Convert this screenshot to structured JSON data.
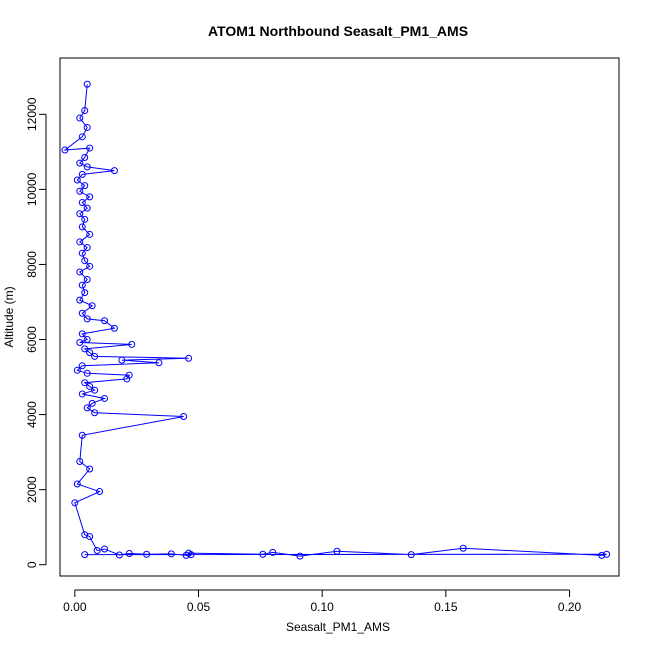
{
  "chart_data": {
    "type": "line",
    "title": "ATOM1 Northbound Seasalt_PM1_AMS",
    "xlabel": "Seasalt_PM1_AMS",
    "ylabel": "Altitude (m)",
    "xlim": [
      -0.006,
      0.22
    ],
    "ylim": [
      -300,
      13500
    ],
    "xticks": [
      0.0,
      0.05,
      0.1,
      0.15,
      0.2
    ],
    "xtick_labels": [
      "0.00",
      "0.05",
      "0.10",
      "0.15",
      "0.20"
    ],
    "yticks": [
      0,
      2000,
      4000,
      6000,
      8000,
      10000,
      12000
    ],
    "ytick_labels": [
      "0",
      "2000",
      "4000",
      "6000",
      "8000",
      "10000",
      "12000"
    ],
    "grid": false,
    "series": [
      {
        "color": "#0000ff",
        "marker": "open-circle",
        "points": [
          [
            0.005,
            12800
          ],
          [
            0.004,
            12100
          ],
          [
            0.002,
            11900
          ],
          [
            0.005,
            11650
          ],
          [
            0.003,
            11400
          ],
          [
            -0.004,
            11050
          ],
          [
            0.006,
            11100
          ],
          [
            0.004,
            10850
          ],
          [
            0.002,
            10700
          ],
          [
            0.005,
            10600
          ],
          [
            0.016,
            10500
          ],
          [
            0.003,
            10400
          ],
          [
            0.001,
            10250
          ],
          [
            0.004,
            10100
          ],
          [
            0.002,
            9950
          ],
          [
            0.006,
            9800
          ],
          [
            0.003,
            9650
          ],
          [
            0.005,
            9500
          ],
          [
            0.002,
            9350
          ],
          [
            0.004,
            9200
          ],
          [
            0.003,
            9000
          ],
          [
            0.006,
            8800
          ],
          [
            0.002,
            8600
          ],
          [
            0.005,
            8450
          ],
          [
            0.003,
            8300
          ],
          [
            0.004,
            8100
          ],
          [
            0.006,
            7950
          ],
          [
            0.002,
            7800
          ],
          [
            0.005,
            7600
          ],
          [
            0.003,
            7450
          ],
          [
            0.004,
            7250
          ],
          [
            0.002,
            7050
          ],
          [
            0.007,
            6900
          ],
          [
            0.003,
            6700
          ],
          [
            0.005,
            6550
          ],
          [
            0.012,
            6500
          ],
          [
            0.016,
            6300
          ],
          [
            0.003,
            6150
          ],
          [
            0.005,
            6000
          ],
          [
            0.002,
            5920
          ],
          [
            0.023,
            5870
          ],
          [
            0.004,
            5750
          ],
          [
            0.006,
            5650
          ],
          [
            0.008,
            5550
          ],
          [
            0.046,
            5500
          ],
          [
            0.019,
            5450
          ],
          [
            0.034,
            5380
          ],
          [
            0.003,
            5300
          ],
          [
            0.001,
            5180
          ],
          [
            0.005,
            5100
          ],
          [
            0.022,
            5050
          ],
          [
            0.021,
            4950
          ],
          [
            0.004,
            4850
          ],
          [
            0.006,
            4750
          ],
          [
            0.008,
            4650
          ],
          [
            0.003,
            4550
          ],
          [
            0.012,
            4430
          ],
          [
            0.007,
            4300
          ],
          [
            0.005,
            4180
          ],
          [
            0.008,
            4050
          ],
          [
            0.044,
            3950
          ],
          [
            0.003,
            3450
          ],
          [
            0.002,
            2750
          ],
          [
            0.006,
            2550
          ],
          [
            0.001,
            2150
          ],
          [
            0.01,
            1950
          ],
          [
            0.0,
            1650
          ],
          [
            0.004,
            800
          ],
          [
            0.006,
            750
          ],
          [
            0.009,
            380
          ],
          [
            0.012,
            420
          ],
          [
            0.018,
            260
          ],
          [
            0.022,
            300
          ],
          [
            0.029,
            280
          ],
          [
            0.039,
            290
          ],
          [
            0.045,
            250
          ],
          [
            0.047,
            270
          ],
          [
            0.046,
            310
          ],
          [
            0.076,
            280
          ],
          [
            0.08,
            330
          ],
          [
            0.091,
            230
          ],
          [
            0.106,
            360
          ],
          [
            0.136,
            270
          ],
          [
            0.157,
            440
          ],
          [
            0.213,
            250
          ],
          [
            0.215,
            280
          ],
          [
            0.004,
            270
          ]
        ]
      }
    ]
  }
}
